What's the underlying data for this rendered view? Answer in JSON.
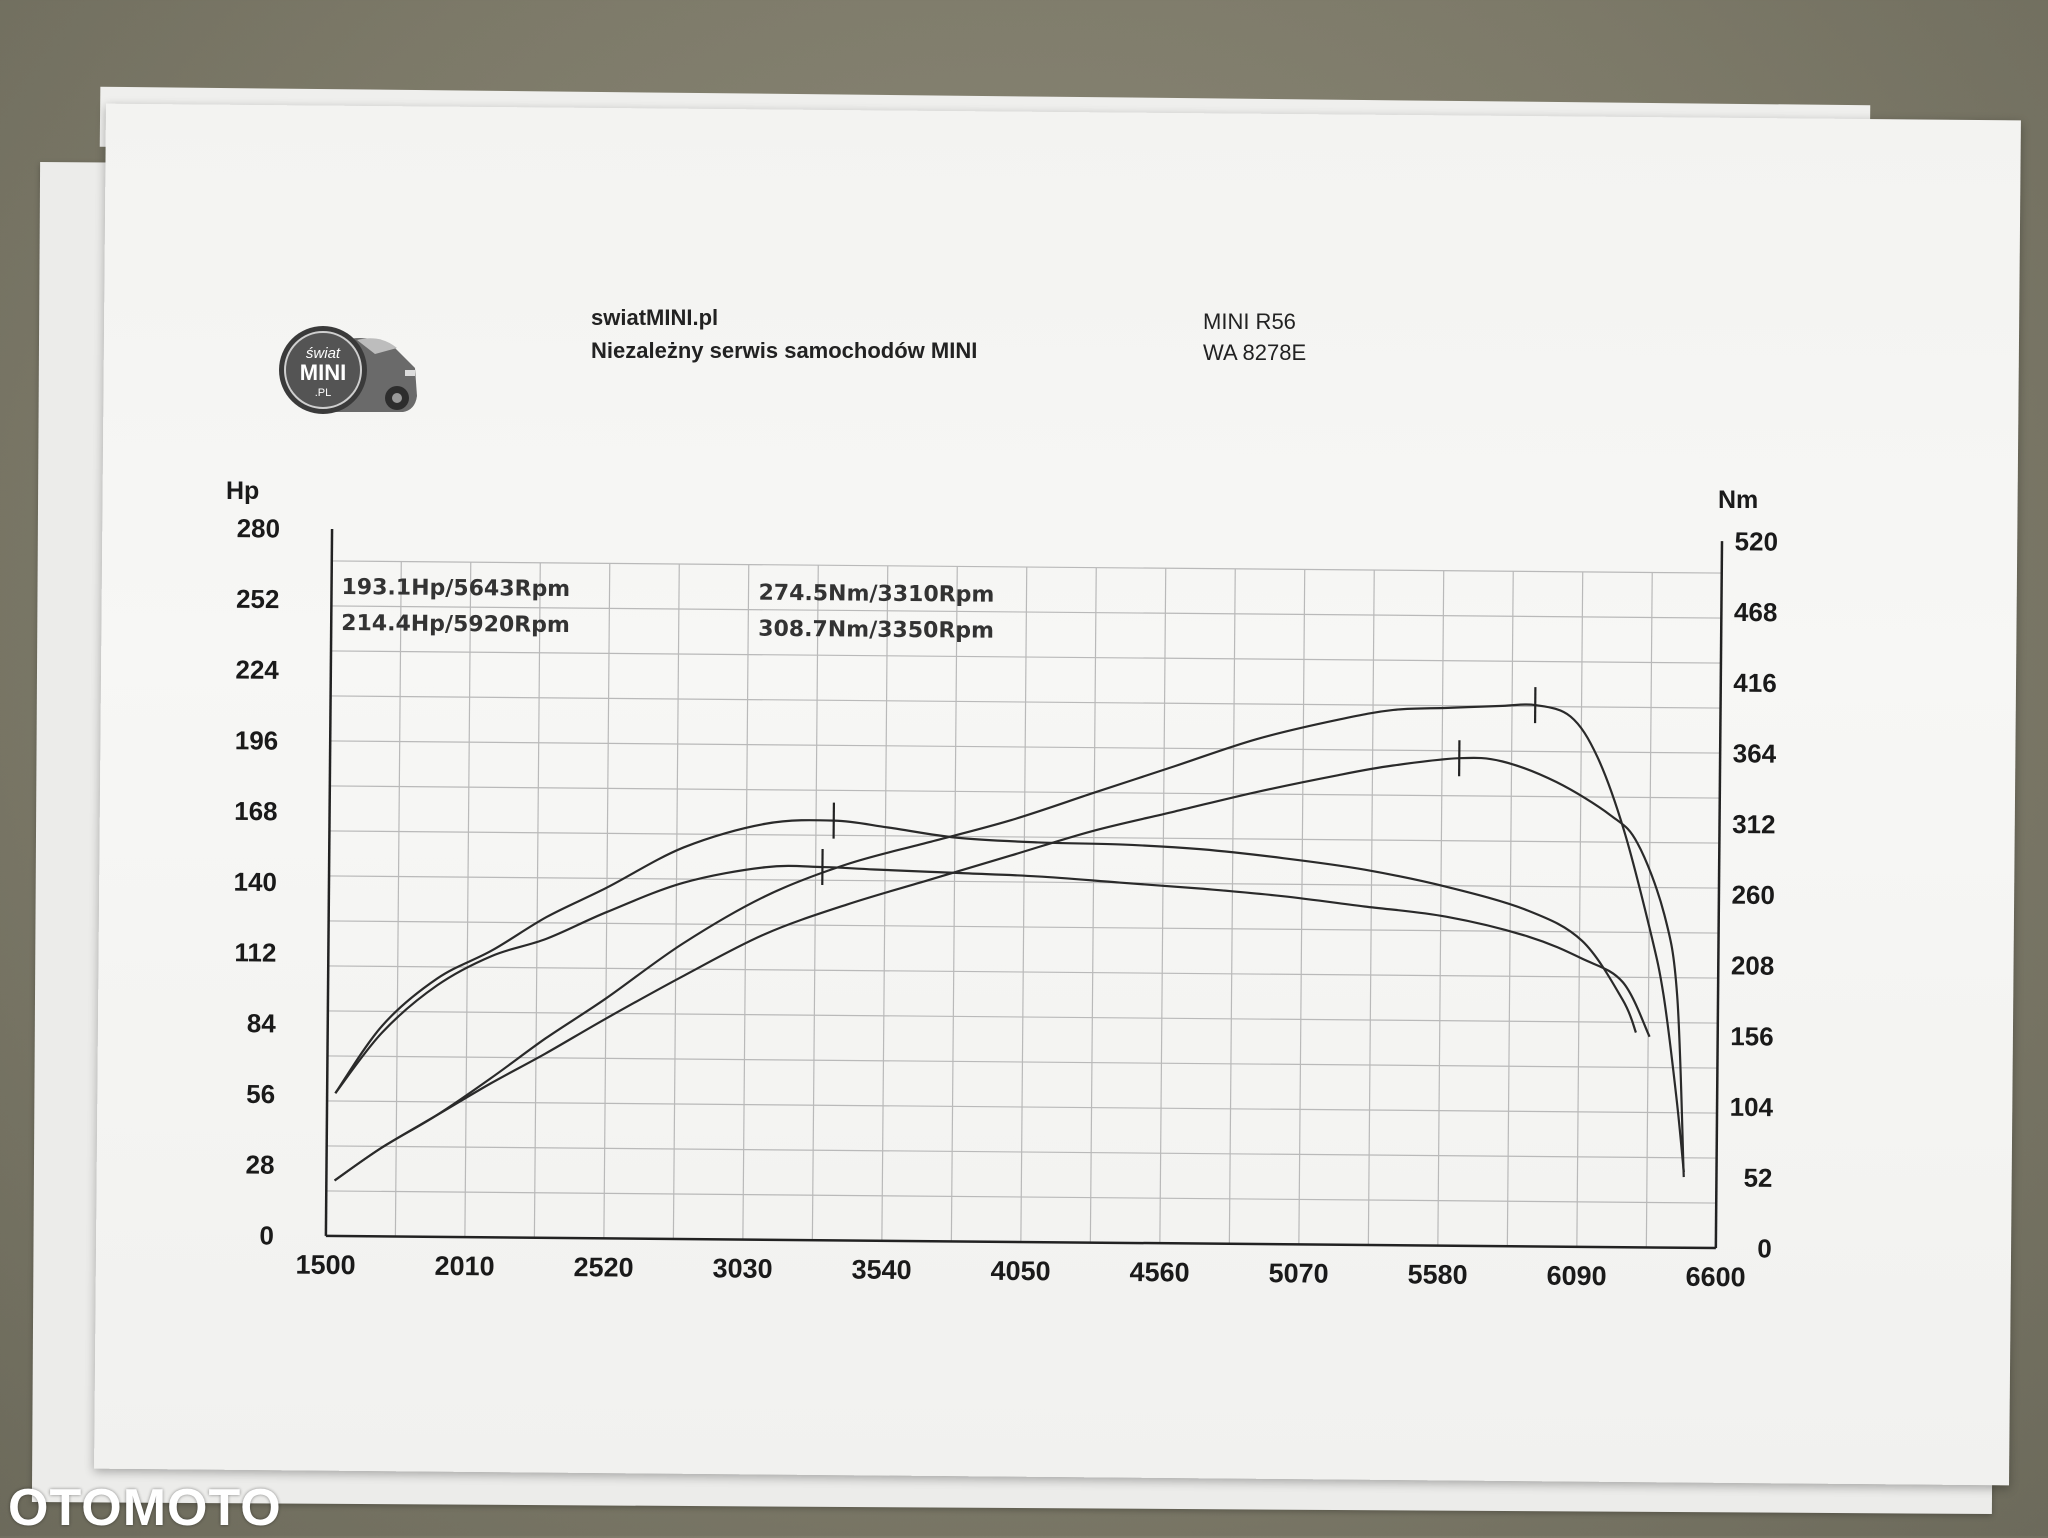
{
  "header": {
    "site": "swiatMINI.pl",
    "subtitle": "Niezależny serwis samochodów MINI",
    "car_model": "MINI R56",
    "plate": "WA 8278E"
  },
  "logo": {
    "line1": "świat",
    "line2": "MINI",
    "line3": ".PL"
  },
  "watermark": "OTOMOTO",
  "chart_data": {
    "type": "line",
    "left_axis": {
      "title": "Hp",
      "min": 0,
      "max": 280,
      "ticks": [
        "0",
        "28",
        "56",
        "84",
        "112",
        "140",
        "168",
        "196",
        "224",
        "252",
        "280"
      ]
    },
    "right_axis": {
      "title": "Nm",
      "min": 0,
      "max": 520,
      "ticks": [
        "0",
        "52",
        "104",
        "156",
        "208",
        "260",
        "312",
        "364",
        "416",
        "468",
        "520"
      ]
    },
    "x_axis": {
      "min": 1500,
      "max": 6600,
      "ticks": [
        "1500",
        "2010",
        "2520",
        "3030",
        "3540",
        "4050",
        "4560",
        "5070",
        "5580",
        "6090",
        "6600"
      ]
    },
    "grid": true,
    "annotations": [
      "193.1Hp/5643Rpm",
      "214.4Hp/5920Rpm",
      "274.5Nm/3310Rpm",
      "308.7Nm/3350Rpm"
    ],
    "series": [
      {
        "kind": "power",
        "axis": "left",
        "x": [
          1530,
          1700,
          1900,
          2100,
          2300,
          2520,
          2800,
          3100,
          3400,
          3700,
          4000,
          4300,
          4600,
          4900,
          5200,
          5400,
          5643,
          5800,
          6000,
          6200,
          6300,
          6400,
          6450,
          6480
        ],
        "y": [
          22,
          35,
          48,
          61,
          73,
          87,
          104,
          121,
          133,
          143,
          153,
          163,
          171,
          179,
          186,
          190,
          193.1,
          192,
          184,
          171,
          160,
          132,
          100,
          28
        ]
      },
      {
        "kind": "power",
        "axis": "left",
        "x": [
          1530,
          1700,
          1900,
          2100,
          2300,
          2520,
          2800,
          3100,
          3400,
          3700,
          4000,
          4300,
          4600,
          4900,
          5200,
          5400,
          5600,
          5800,
          5920,
          6050,
          6150,
          6250,
          6350,
          6400,
          6450,
          6480
        ],
        "y": [
          22,
          35,
          48,
          63,
          79,
          95,
          117,
          136,
          149,
          158,
          167,
          178,
          189,
          200,
          208,
          212,
          213,
          214,
          214.4,
          210,
          194,
          165,
          125,
          100,
          60,
          30
        ]
      },
      {
        "kind": "torque",
        "axis": "right",
        "x": [
          1530,
          1700,
          1900,
          2100,
          2300,
          2520,
          2800,
          3100,
          3310,
          3500,
          3800,
          4100,
          4400,
          4700,
          5000,
          5300,
          5600,
          5900,
          6100,
          6250,
          6350
        ],
        "y": [
          105,
          150,
          185,
          207,
          220,
          240,
          262,
          274,
          274.5,
          273,
          271,
          269,
          265,
          261,
          256,
          249,
          242,
          228,
          212,
          195,
          155
        ]
      },
      {
        "kind": "torque",
        "axis": "right",
        "x": [
          1530,
          1700,
          1900,
          2100,
          2300,
          2520,
          2800,
          3100,
          3350,
          3550,
          3800,
          4100,
          4400,
          4700,
          5000,
          5300,
          5600,
          5900,
          6100,
          6250,
          6300
        ],
        "y": [
          105,
          155,
          190,
          211,
          236,
          258,
          288,
          306,
          308.7,
          304,
          297,
          294,
          293,
          290,
          284,
          276,
          264,
          247,
          225,
          182,
          158
        ]
      }
    ]
  }
}
